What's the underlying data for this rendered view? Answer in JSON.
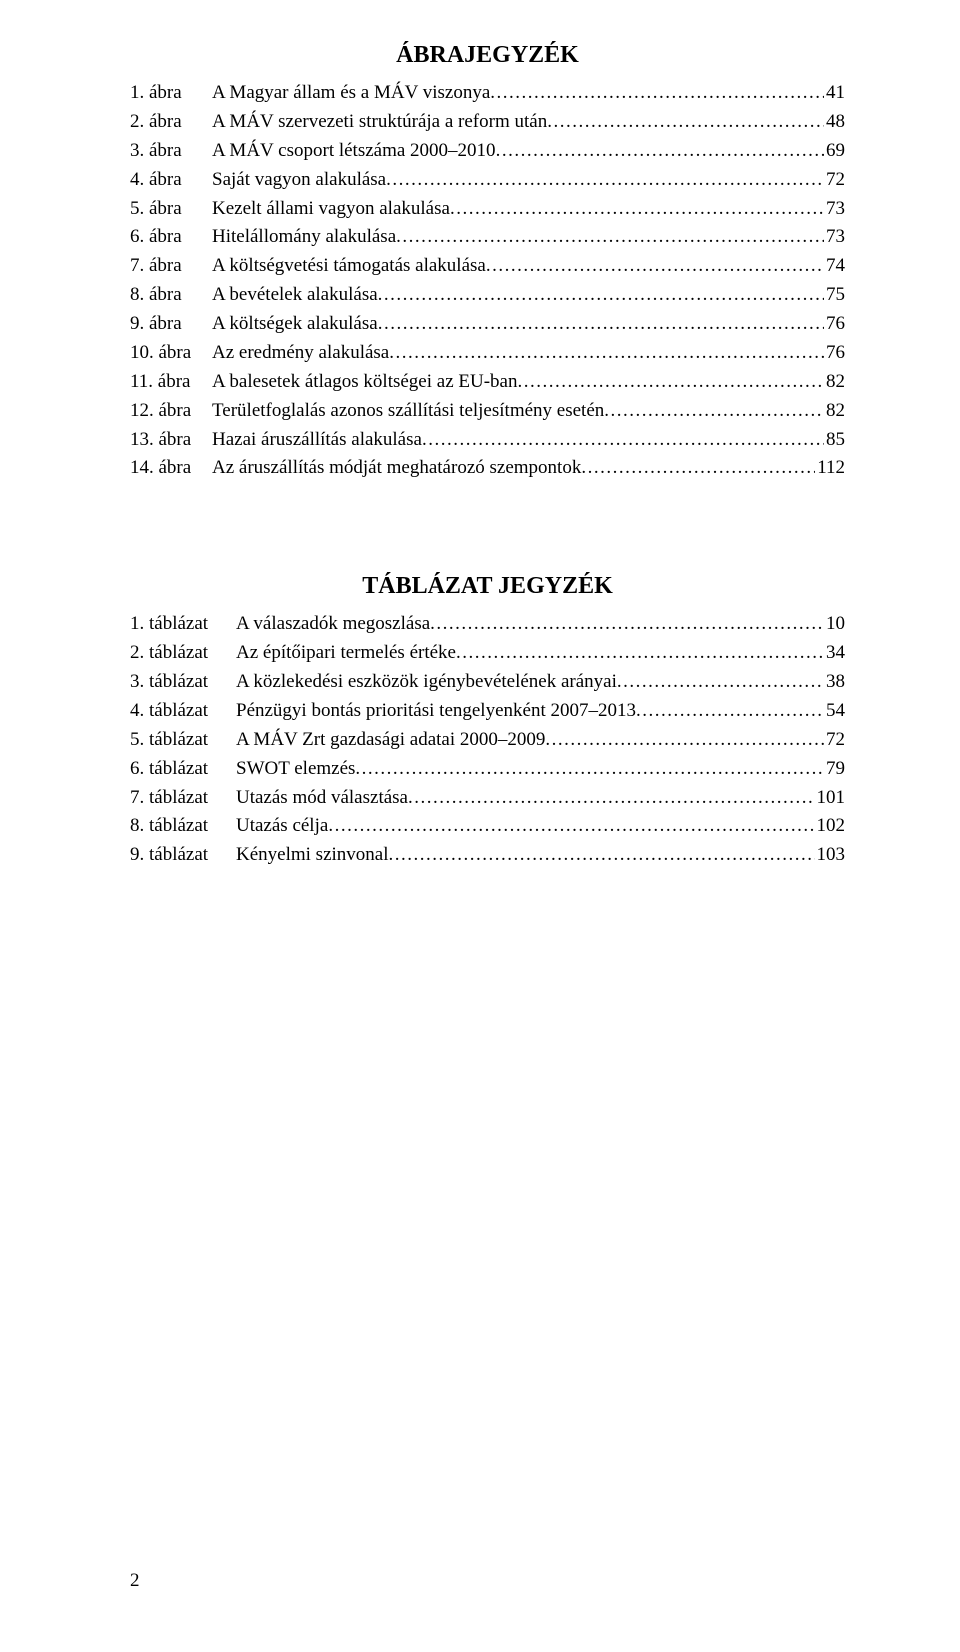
{
  "headings": {
    "figures": "ÁBRAJEGYZÉK",
    "tables": "TÁBLÁZAT JEGYZÉK"
  },
  "figures": [
    {
      "label": "1. ábra",
      "title": "A Magyar állam és a MÁV viszonya",
      "page": "41"
    },
    {
      "label": "2. ábra",
      "title": "A MÁV szervezeti struktúrája a reform után",
      "page": "48"
    },
    {
      "label": "3. ábra",
      "title": "A MÁV csoport létszáma 2000–2010",
      "page": "69"
    },
    {
      "label": "4. ábra",
      "title": "Saját vagyon alakulása",
      "page": "72"
    },
    {
      "label": "5. ábra",
      "title": "Kezelt állami vagyon alakulása",
      "page": "73"
    },
    {
      "label": "6. ábra",
      "title": "Hitelállomány alakulása",
      "page": "73"
    },
    {
      "label": "7. ábra",
      "title": "A költségvetési támogatás alakulása",
      "page": "74"
    },
    {
      "label": "8. ábra",
      "title": "A bevételek alakulása",
      "page": "75"
    },
    {
      "label": "9. ábra",
      "title": "A költségek alakulása",
      "page": "76"
    },
    {
      "label": "10. ábra",
      "title": "Az eredmény alakulása",
      "page": "76"
    },
    {
      "label": "11. ábra",
      "title": "A balesetek átlagos költségei az EU-ban",
      "page": "82"
    },
    {
      "label": "12. ábra",
      "title": "Területfoglalás azonos szállítási teljesítmény esetén",
      "page": "82"
    },
    {
      "label": "13. ábra",
      "title": "Hazai áruszállítás alakulása",
      "page": "85"
    },
    {
      "label": "14. ábra",
      "title": "Az áruszállítás módját meghatározó szempontok",
      "page": "112"
    }
  ],
  "tables": [
    {
      "label": "1. táblázat",
      "title": "A válaszadók megoszlása",
      "page": "10"
    },
    {
      "label": "2. táblázat",
      "title": "Az építőipari termelés értéke",
      "page": "34"
    },
    {
      "label": "3. táblázat",
      "title": "A közlekedési eszközök igénybevételének arányai",
      "page": "38"
    },
    {
      "label": "4. táblázat",
      "title": "Pénzügyi bontás prioritási tengelyenként 2007–2013",
      "page": "54"
    },
    {
      "label": "5. táblázat",
      "title": "A MÁV Zrt gazdasági adatai 2000–2009",
      "page": "72"
    },
    {
      "label": "6. táblázat",
      "title": "SWOT elemzés",
      "page": "79"
    },
    {
      "label": "7. táblázat",
      "title": "Utazás mód választása",
      "page": "101"
    },
    {
      "label": "8. táblázat",
      "title": "Utazás célja",
      "page": "102"
    },
    {
      "label": "9. táblázat",
      "title": "Kényelmi szinvonal",
      "page": "103"
    }
  ],
  "page_number": "2"
}
